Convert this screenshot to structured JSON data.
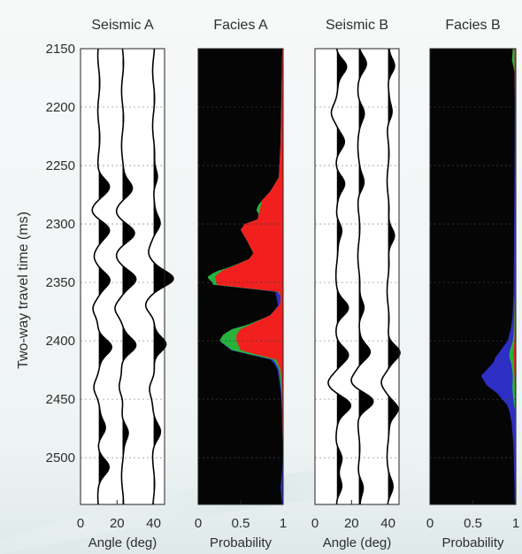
{
  "chart_data": {
    "type": "area",
    "y_axis": {
      "label": "Two-way travel time (ms)",
      "range": [
        2150,
        2540
      ],
      "ticks": [
        "2150",
        "2200",
        "2250",
        "2300",
        "2350",
        "2400",
        "2450",
        "2500"
      ],
      "reversed": true,
      "grid": true
    },
    "panels": [
      {
        "name": "seismic-a",
        "title": "Seismic A",
        "kind": "wiggle",
        "xlabel": "Angle (deg)",
        "xticks": [
          "0",
          "20",
          "40"
        ],
        "xrange": [
          0,
          46
        ],
        "traces": [
          {
            "angle": 10,
            "events": [
              {
                "t": 2268,
                "a": 0.75
              },
              {
                "t": 2288,
                "a": -0.5
              },
              {
                "t": 2305,
                "a": 0.85
              },
              {
                "t": 2327,
                "a": -0.4
              },
              {
                "t": 2348,
                "a": 0.9
              },
              {
                "t": 2372,
                "a": -0.5
              },
              {
                "t": 2405,
                "a": 0.95
              },
              {
                "t": 2440,
                "a": -0.3
              },
              {
                "t": 2475,
                "a": 0.5
              },
              {
                "t": 2508,
                "a": 0.7
              }
            ]
          },
          {
            "angle": 23,
            "events": [
              {
                "t": 2270,
                "a": 0.75
              },
              {
                "t": 2290,
                "a": -0.45
              },
              {
                "t": 2308,
                "a": 0.85
              },
              {
                "t": 2327,
                "a": -0.4
              },
              {
                "t": 2347,
                "a": 0.95
              },
              {
                "t": 2372,
                "a": -0.5
              },
              {
                "t": 2404,
                "a": 0.95
              },
              {
                "t": 2440,
                "a": -0.3
              },
              {
                "t": 2478,
                "a": 0.45
              }
            ]
          },
          {
            "angle": 40,
            "events": [
              {
                "t": 2260,
                "a": 0.35
              },
              {
                "t": 2300,
                "a": 0.5
              },
              {
                "t": 2325,
                "a": -0.4
              },
              {
                "t": 2347,
                "a": 1.5
              },
              {
                "t": 2370,
                "a": -0.6
              },
              {
                "t": 2403,
                "a": 1.0
              },
              {
                "t": 2440,
                "a": -0.3
              },
              {
                "t": 2478,
                "a": 0.45
              }
            ]
          }
        ]
      },
      {
        "name": "facies-a",
        "title": "Facies A",
        "kind": "probability",
        "xlabel": "Probability",
        "xticks": [
          "0",
          "0.5",
          "1"
        ],
        "xrange": [
          0,
          1
        ],
        "colors": {
          "black": "#050505",
          "red": "#f1201e",
          "green": "#27b33b",
          "blue": "#2d2fc4"
        },
        "series": [
          {
            "name": "red",
            "t": [
              2150,
              2190,
              2230,
              2260,
              2272,
              2280,
              2290,
              2296,
              2300,
              2305,
              2315,
              2325,
              2330,
              2335,
              2340,
              2345,
              2352,
              2358,
              2362,
              2366,
              2370,
              2378,
              2385,
              2390,
              2395,
              2400,
              2408,
              2412,
              2416,
              2425,
              2435,
              2445,
              2470,
              2500,
              2540
            ],
            "p": [
              0.01,
              0.02,
              0.03,
              0.05,
              0.15,
              0.25,
              0.28,
              0.3,
              0.45,
              0.5,
              0.42,
              0.35,
              0.4,
              0.55,
              0.72,
              0.8,
              0.78,
              0.05,
              0.03,
              0.03,
              0.05,
              0.15,
              0.35,
              0.5,
              0.55,
              0.55,
              0.5,
              0.3,
              0.08,
              0.03,
              0.02,
              0.01,
              0.01,
              0.0,
              0.0
            ]
          },
          {
            "name": "green",
            "t": [
              2150,
              2280,
              2284,
              2288,
              2292,
              2330,
              2338,
              2342,
              2346,
              2350,
              2356,
              2362,
              2380,
              2386,
              2390,
              2394,
              2400,
              2408,
              2414,
              2420,
              2440,
              2460,
              2540
            ],
            "p": [
              0.0,
              0.0,
              0.03,
              0.04,
              0.0,
              0.0,
              0.02,
              0.07,
              0.09,
              0.05,
              0.02,
              0.0,
              0.0,
              0.03,
              0.1,
              0.15,
              0.2,
              0.1,
              0.05,
              0.02,
              0.01,
              0.0,
              0.0
            ]
          },
          {
            "name": "blue",
            "t": [
              2150,
              2350,
              2356,
              2362,
              2366,
              2370,
              2380,
              2400,
              2410,
              2416,
              2422,
              2440,
              2490,
              2510,
              2525,
              2535,
              2540
            ],
            "p": [
              0.0,
              0.0,
              0.02,
              0.05,
              0.04,
              0.01,
              0.0,
              0.0,
              0.02,
              0.03,
              0.02,
              0.01,
              0.0,
              0.01,
              0.03,
              0.02,
              0.01
            ]
          }
        ]
      },
      {
        "name": "seismic-b",
        "title": "Seismic B",
        "kind": "wiggle",
        "xlabel": "Angle (deg)",
        "xticks": [
          "0",
          "20",
          "40"
        ],
        "xrange": [
          0,
          46
        ],
        "traces": [
          {
            "angle": 12,
            "events": [
              {
                "t": 2165,
                "a": 0.75
              },
              {
                "t": 2205,
                "a": -0.35
              },
              {
                "t": 2230,
                "a": 0.5
              },
              {
                "t": 2265,
                "a": 0.55
              },
              {
                "t": 2305,
                "a": 0.4
              },
              {
                "t": 2372,
                "a": 0.8
              },
              {
                "t": 2412,
                "a": 0.8
              },
              {
                "t": 2436,
                "a": -0.6
              },
              {
                "t": 2455,
                "a": 1.0
              },
              {
                "t": 2500,
                "a": 0.35
              },
              {
                "t": 2525,
                "a": 0.4
              }
            ]
          },
          {
            "angle": 24,
            "events": [
              {
                "t": 2163,
                "a": 0.5
              },
              {
                "t": 2205,
                "a": 0.35
              },
              {
                "t": 2265,
                "a": 0.35
              },
              {
                "t": 2372,
                "a": 0.45
              },
              {
                "t": 2410,
                "a": 0.85
              },
              {
                "t": 2435,
                "a": -0.6
              },
              {
                "t": 2452,
                "a": 1.05
              },
              {
                "t": 2525,
                "a": 0.35
              }
            ]
          },
          {
            "angle": 40,
            "events": [
              {
                "t": 2165,
                "a": 0.55
              },
              {
                "t": 2205,
                "a": 0.3
              },
              {
                "t": 2310,
                "a": 0.55
              },
              {
                "t": 2410,
                "a": 0.95
              },
              {
                "t": 2435,
                "a": -0.55
              },
              {
                "t": 2458,
                "a": 0.8
              },
              {
                "t": 2525,
                "a": 0.3
              }
            ]
          }
        ]
      },
      {
        "name": "facies-b",
        "title": "Facies B",
        "kind": "probability",
        "xlabel": "Probability",
        "xticks": [
          "0",
          "0.5",
          "1"
        ],
        "xrange": [
          0,
          1
        ],
        "colors": {
          "black": "#050505",
          "red": "#f1201e",
          "green": "#27b33b",
          "blue": "#2d2fc4"
        },
        "series": [
          {
            "name": "red",
            "t": [
              2150,
              2200,
              2300,
              2360,
              2400,
              2410,
              2420,
              2440,
              2540
            ],
            "p": [
              0.015,
              0.01,
              0.01,
              0.01,
              0.015,
              0.03,
              0.02,
              0.01,
              0.005
            ]
          },
          {
            "name": "green",
            "t": [
              2150,
              2160,
              2170,
              2360,
              2390,
              2400,
              2408,
              2414,
              2420,
              2430,
              2440,
              2450,
              2460,
              2540
            ],
            "p": [
              0.02,
              0.03,
              0.0,
              0.0,
              0.01,
              0.02,
              0.04,
              0.05,
              0.03,
              0.02,
              0.03,
              0.02,
              0.0,
              0.0
            ]
          },
          {
            "name": "blue",
            "t": [
              2150,
              2250,
              2300,
              2350,
              2380,
              2390,
              2400,
              2410,
              2418,
              2425,
              2430,
              2438,
              2445,
              2455,
              2470,
              2490,
              2510,
              2525,
              2535,
              2540
            ],
            "p": [
              0.0,
              0.005,
              0.01,
              0.015,
              0.02,
              0.035,
              0.06,
              0.12,
              0.2,
              0.3,
              0.37,
              0.3,
              0.18,
              0.08,
              0.04,
              0.02,
              0.015,
              0.01,
              0.01,
              0.005
            ]
          }
        ]
      }
    ]
  }
}
